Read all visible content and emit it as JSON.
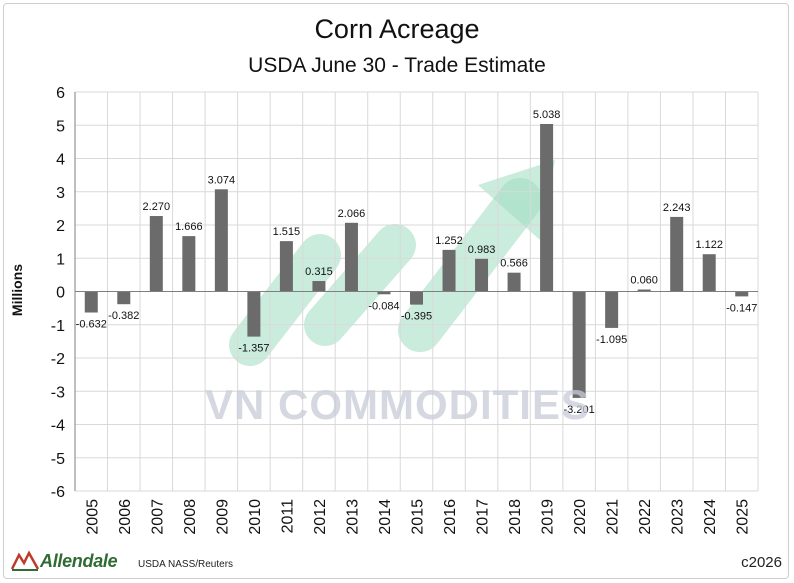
{
  "chart_data": {
    "type": "bar",
    "title": "Corn Acreage",
    "subtitle": "USDA June 30 - Trade Estimate",
    "ylabel": "Millions",
    "xlabel": "",
    "ylim": [
      -6,
      6
    ],
    "yticks": [
      "6",
      "5",
      "4",
      "3",
      "2",
      "1",
      "0",
      "-1",
      "-2",
      "-3",
      "-4",
      "-5",
      "-6"
    ],
    "grid": true,
    "categories": [
      "2005",
      "2006",
      "2007",
      "2008",
      "2009",
      "2010",
      "2011",
      "2012",
      "2013",
      "2014",
      "2015",
      "2016",
      "2017",
      "2018",
      "2019",
      "2020",
      "2021",
      "2022",
      "2023",
      "2024",
      "2025"
    ],
    "values": [
      -0.632,
      -0.382,
      2.27,
      1.666,
      3.074,
      -1.357,
      1.515,
      0.315,
      2.066,
      -0.084,
      -0.395,
      1.252,
      0.983,
      0.566,
      5.038,
      -3.201,
      -1.095,
      0.06,
      2.243,
      1.122,
      -0.147
    ],
    "data_labels": [
      "-0.632",
      "-0.382",
      "2.270",
      "1.666",
      "3.074",
      "-1.357",
      "1.515",
      "0.315",
      "2.066",
      "-0.084",
      "-0.395",
      "1.252",
      "0.983",
      "0.566",
      "5.038",
      "-3.201",
      "-1.095",
      "0.060",
      "2.243",
      "1.122",
      "-0.147"
    ],
    "bar_color": "#6b6b6b"
  },
  "watermark": "VN COMMODITIES",
  "footer": {
    "brand": "Allendale",
    "source": "USDA NASS/Reuters",
    "copyright": "c2026"
  },
  "colors": {
    "brand": "#2f6b33",
    "watermark_arrow": "#9fdcc0",
    "grid": "#d9d9d9"
  },
  "icons": {
    "brand_logo": "allendale-logo-icon"
  }
}
